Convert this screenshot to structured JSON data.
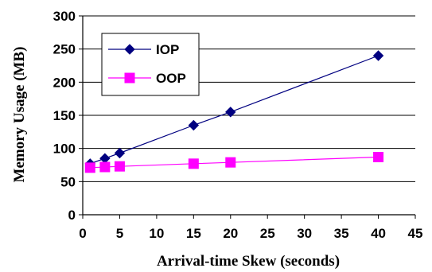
{
  "chart_data": {
    "type": "line",
    "title": "",
    "xlabel": "Arrival-time Skew (seconds)",
    "ylabel": "Memory Usage (MB)",
    "xlim": [
      0,
      45
    ],
    "ylim": [
      0,
      300
    ],
    "xticks": [
      0,
      5,
      10,
      15,
      20,
      25,
      30,
      35,
      40,
      45
    ],
    "yticks": [
      0,
      50,
      100,
      150,
      200,
      250,
      300
    ],
    "grid": "horizontal",
    "legend_position": "top-left",
    "series": [
      {
        "name": "IOP",
        "color": "#000080",
        "marker": "diamond",
        "x": [
          1,
          3,
          5,
          15,
          20,
          40
        ],
        "y": [
          77,
          85,
          93,
          135,
          155,
          240
        ]
      },
      {
        "name": "OOP",
        "color": "#ff00ff",
        "marker": "square",
        "x": [
          1,
          3,
          5,
          15,
          20,
          40
        ],
        "y": [
          71,
          72,
          73,
          77,
          79,
          87
        ]
      }
    ]
  }
}
